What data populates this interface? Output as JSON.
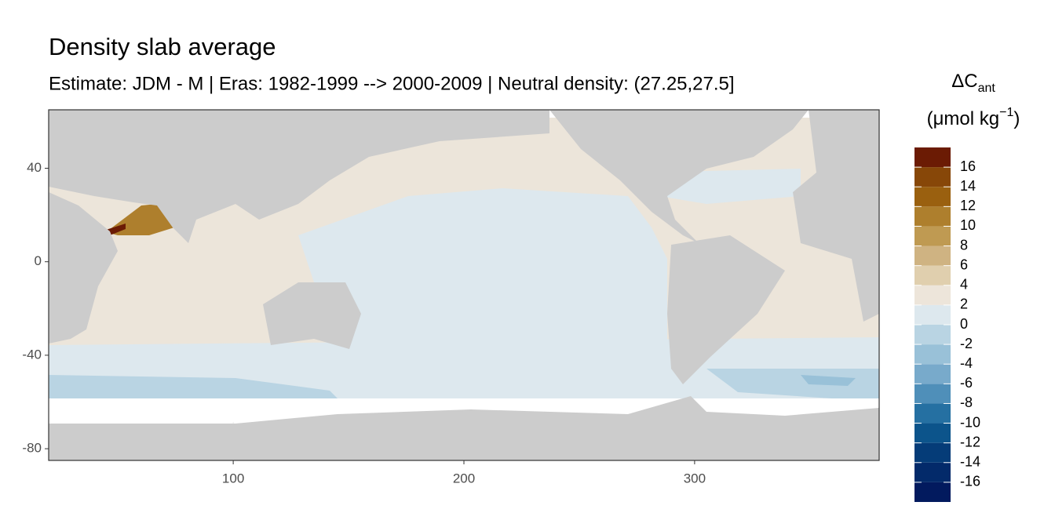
{
  "chart_data": {
    "type": "map",
    "title": "Density slab average",
    "subtitle": "Estimate: JDM - M | Eras: 1982-1999 --> 2000-2009 | Neutral density: (27.25,27.5]",
    "xlim": [
      20,
      380
    ],
    "xticks": [
      100,
      200,
      300
    ],
    "ylim": [
      -85,
      65
    ],
    "yticks": [
      -80,
      -40,
      0,
      40
    ],
    "grid": true,
    "legend_title": {
      "main": "ΔC",
      "sub": "ant"
    },
    "legend_unit": {
      "main": "(μmol kg",
      "sup": "−1",
      "close": ")"
    },
    "legend_breaks": [
      -18,
      -16,
      -14,
      -12,
      -10,
      -8,
      -6,
      -4,
      -2,
      0,
      2,
      4,
      6,
      8,
      10,
      12,
      14,
      16,
      18
    ],
    "legend_ticks": [
      -16,
      -14,
      -12,
      -10,
      -8,
      -6,
      -4,
      -2,
      0,
      2,
      4,
      6,
      8,
      10,
      12,
      14,
      16
    ],
    "legend_colors": [
      "#021a5e",
      "#032a6a",
      "#053c78",
      "#0c548b",
      "#2570a2",
      "#4f8fb9",
      "#78aacb",
      "#99c1d8",
      "#b9d4e3",
      "#dde8ee",
      "#ede5da",
      "#e0cfae",
      "#cfb382",
      "#bf9a52",
      "#ae7f2d",
      "#9a600f",
      "#874708",
      "#6b1b04"
    ]
  }
}
